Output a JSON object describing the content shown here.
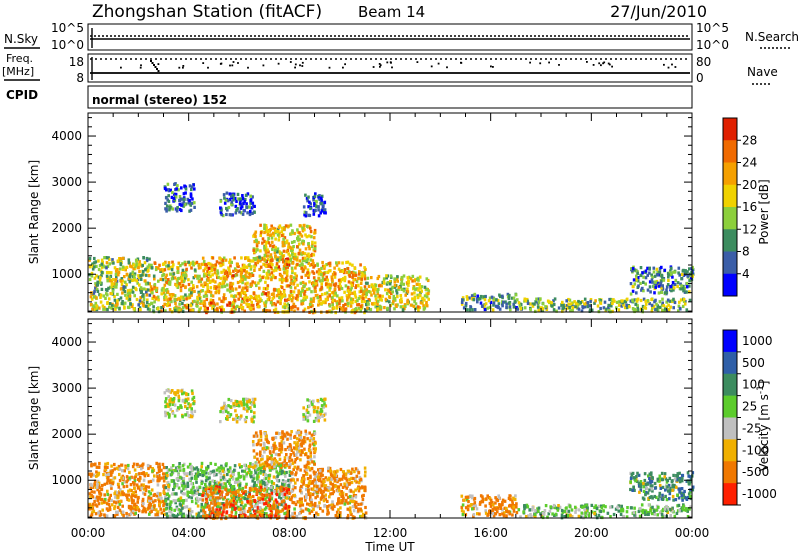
{
  "header": {
    "station": "Zhongshan Station (fitACF)",
    "beam": "Beam 14",
    "date": "27/Jun/2010"
  },
  "status_panel": {
    "nsky_label": "N.Sky",
    "nsky_ticks": [
      "10^5",
      "10^0"
    ],
    "nsearch_label": "N.Search",
    "nsearch_ticks": [
      "10^5",
      "10^0"
    ],
    "freq_label": "Freq.",
    "freq_unit": "[MHz]",
    "freq_ticks": [
      "18",
      "8"
    ],
    "nave_label": "Nave",
    "nave_ticks": [
      "80",
      "0"
    ],
    "cpid_label": "CPID",
    "cpid_text": "normal (stereo) 152"
  },
  "axes": {
    "ylabel": "Slant Range [km]",
    "xlabel": "Time UT",
    "x_ticks": [
      "00:00",
      "04:00",
      "08:00",
      "12:00",
      "16:00",
      "20:00",
      "00:00"
    ],
    "y_ticks": [
      "1000",
      "2000",
      "3000",
      "4000"
    ]
  },
  "colors": {
    "power": [
      "#0000ff",
      "#3b5ea8",
      "#3c8c5f",
      "#8ccf3c",
      "#f0d200",
      "#f5a000",
      "#f06a00",
      "#e02000"
    ],
    "velocity": [
      "#0000ff",
      "#2f5fa8",
      "#3c8c5f",
      "#5ccc2c",
      "#c0c0c0",
      "#f0b000",
      "#f07800",
      "#ff2000"
    ]
  },
  "chart_data": [
    {
      "type": "heatmap",
      "title": "",
      "xlabel": "",
      "ylabel": "Slant Range [km]",
      "xlim": [
        0,
        24
      ],
      "ylim": [
        180,
        4500
      ],
      "colorbar_label": "Power [dB]",
      "colorbar_ticks": [
        "4",
        "8",
        "12",
        "16",
        "20",
        "24",
        "28"
      ],
      "clim": [
        0,
        30
      ],
      "regions": [
        {
          "t": [
            0.0,
            2.5
          ],
          "r": [
            250,
            1400
          ],
          "value": 14
        },
        {
          "t": [
            2.5,
            4.5
          ],
          "r": [
            220,
            1300
          ],
          "value": 17
        },
        {
          "t": [
            4.5,
            8.0
          ],
          "r": [
            200,
            1400
          ],
          "value": 20
        },
        {
          "t": [
            8.0,
            11.0
          ],
          "r": [
            200,
            1300
          ],
          "value": 19
        },
        {
          "t": [
            6.5,
            9.0
          ],
          "r": [
            1300,
            2100
          ],
          "value": 18
        },
        {
          "t": [
            3.0,
            4.2
          ],
          "r": [
            2400,
            3000
          ],
          "value": 6
        },
        {
          "t": [
            5.2,
            6.6
          ],
          "r": [
            2300,
            2800
          ],
          "value": 6
        },
        {
          "t": [
            8.5,
            9.4
          ],
          "r": [
            2300,
            2800
          ],
          "value": 6
        },
        {
          "t": [
            11.0,
            13.5
          ],
          "r": [
            250,
            1000
          ],
          "value": 16
        },
        {
          "t": [
            14.8,
            17.0
          ],
          "r": [
            250,
            600
          ],
          "value": 10
        },
        {
          "t": [
            17.0,
            23.9
          ],
          "r": [
            220,
            500
          ],
          "value": 12
        },
        {
          "t": [
            21.5,
            24.0
          ],
          "r": [
            600,
            1200
          ],
          "value": 9
        }
      ]
    },
    {
      "type": "heatmap",
      "title": "",
      "xlabel": "Time UT",
      "ylabel": "Slant Range [km]",
      "xlim": [
        0,
        24
      ],
      "ylim": [
        180,
        4500
      ],
      "colorbar_label": "Velocity [m s^-1]",
      "colorbar_ticks": [
        "1000",
        "500",
        "100",
        "25",
        "-25",
        "-100",
        "-500",
        "-1000"
      ],
      "regions": [
        {
          "t": [
            0.0,
            3.0
          ],
          "r": [
            250,
            1400
          ],
          "value": -150
        },
        {
          "t": [
            3.0,
            8.0
          ],
          "r": [
            220,
            1400
          ],
          "value": 60
        },
        {
          "t": [
            4.5,
            8.0
          ],
          "r": [
            200,
            900
          ],
          "value": -300
        },
        {
          "t": [
            8.0,
            11.0
          ],
          "r": [
            200,
            1300
          ],
          "value": -150
        },
        {
          "t": [
            6.5,
            9.0
          ],
          "r": [
            1300,
            2100
          ],
          "value": -120
        },
        {
          "t": [
            3.0,
            4.2
          ],
          "r": [
            2400,
            3000
          ],
          "value": 0
        },
        {
          "t": [
            5.2,
            6.6
          ],
          "r": [
            2300,
            2800
          ],
          "value": 0
        },
        {
          "t": [
            8.5,
            9.4
          ],
          "r": [
            2300,
            2800
          ],
          "value": 0
        },
        {
          "t": [
            14.8,
            17.0
          ],
          "r": [
            250,
            700
          ],
          "value": -200
        },
        {
          "t": [
            17.0,
            23.9
          ],
          "r": [
            220,
            500
          ],
          "value": 60
        },
        {
          "t": [
            21.5,
            24.0
          ],
          "r": [
            600,
            1200
          ],
          "value": 300
        }
      ]
    }
  ]
}
